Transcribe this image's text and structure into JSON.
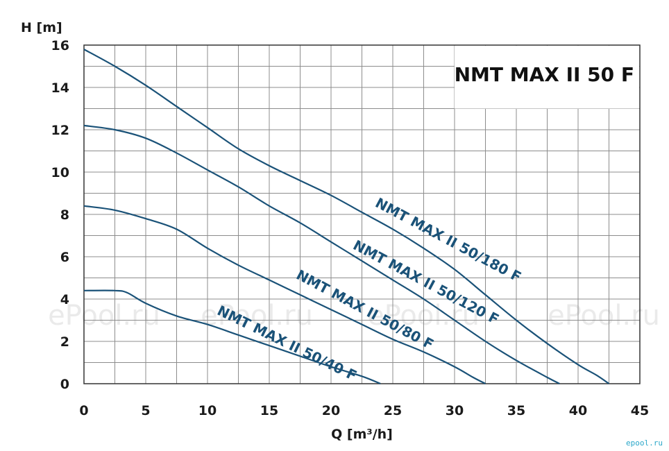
{
  "chart_data": {
    "type": "line",
    "title": "NMT MAX II 50 F",
    "xlabel": "Q [m³/h]",
    "ylabel": "H [m]",
    "xlim": [
      0,
      45
    ],
    "ylim": [
      0,
      16
    ],
    "xticks": [
      0,
      5,
      10,
      15,
      20,
      25,
      30,
      35,
      40,
      45
    ],
    "yticks": [
      0,
      2,
      4,
      6,
      8,
      10,
      12,
      14,
      16
    ],
    "grid": true,
    "line_color": "#1a5278",
    "series": [
      {
        "name": "NMT MAX II 50/180 F",
        "x": [
          0,
          2.5,
          5,
          7.5,
          10,
          12.5,
          15,
          17.5,
          20,
          22.5,
          25,
          27.5,
          30,
          32.5,
          35,
          37.5,
          40,
          41.5,
          42.5
        ],
        "y": [
          15.8,
          15.0,
          14.1,
          13.1,
          12.1,
          11.1,
          10.3,
          9.6,
          8.9,
          8.1,
          7.3,
          6.4,
          5.4,
          4.2,
          3.0,
          1.9,
          0.9,
          0.4,
          0
        ]
      },
      {
        "name": "NMT MAX II 50/120 F",
        "x": [
          0,
          2.5,
          5,
          7.5,
          10,
          12.5,
          15,
          17.5,
          20,
          22.5,
          25,
          27.5,
          30,
          32.5,
          35,
          37.5,
          38.5
        ],
        "y": [
          12.2,
          12.0,
          11.6,
          10.9,
          10.1,
          9.3,
          8.4,
          7.6,
          6.7,
          5.8,
          4.9,
          4.0,
          3.0,
          2.0,
          1.1,
          0.3,
          0
        ]
      },
      {
        "name": "NMT MAX II 50/80 F",
        "x": [
          0,
          2.5,
          5,
          7.5,
          10,
          12.5,
          15,
          17.5,
          20,
          22.5,
          25,
          27.5,
          30,
          31.5,
          32.5
        ],
        "y": [
          8.4,
          8.2,
          7.8,
          7.3,
          6.4,
          5.6,
          4.9,
          4.2,
          3.5,
          2.8,
          2.1,
          1.5,
          0.8,
          0.3,
          0
        ]
      },
      {
        "name": "NMT MAX II 50/40 F",
        "x": [
          0,
          2.5,
          3.5,
          5,
          7.5,
          10,
          12.5,
          15,
          17.5,
          20,
          22.5,
          24
        ],
        "y": [
          4.4,
          4.4,
          4.3,
          3.8,
          3.2,
          2.8,
          2.3,
          1.8,
          1.3,
          0.8,
          0.35,
          0
        ]
      }
    ],
    "series_labels": [
      {
        "text": "NMT MAX II 50/180 F",
        "x": 23.5,
        "y": 8.4,
        "angle": -28
      },
      {
        "text": "NMT MAX II 50/120 F",
        "x": 21.7,
        "y": 6.4,
        "angle": -28
      },
      {
        "text": "NMT MAX II 50/80 F",
        "x": 17.1,
        "y": 5.0,
        "angle": -28
      },
      {
        "text": "NMT MAX II 50/40 F",
        "x": 10.7,
        "y": 3.3,
        "angle": -26
      }
    ],
    "watermarks": [
      "ePool.ru",
      "ePool.ru",
      "ePool.ru",
      "ePool.ru"
    ],
    "corner_watermark": "epool.ru"
  }
}
